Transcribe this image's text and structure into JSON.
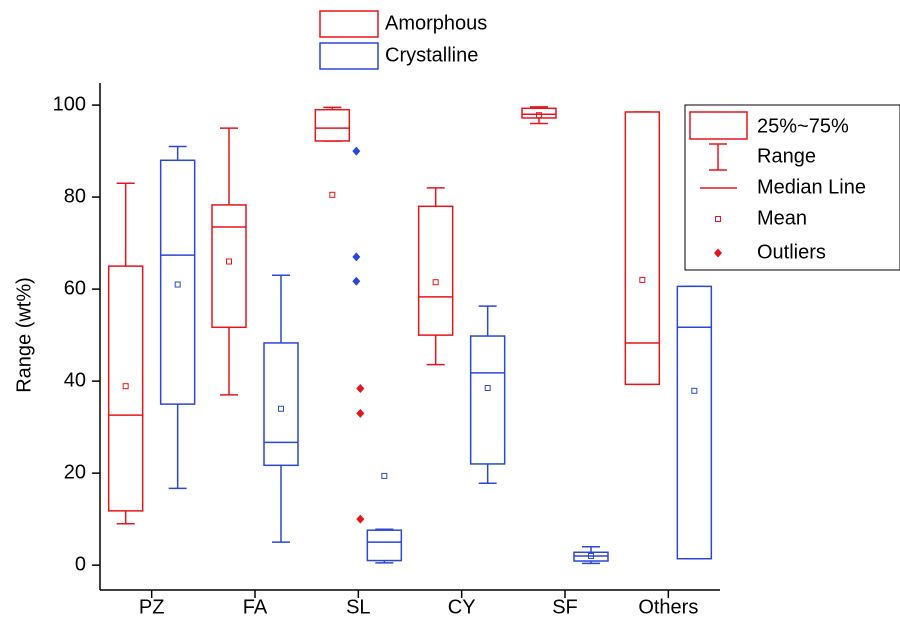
{
  "chart_data": {
    "type": "box",
    "y_label": "Range (wt%)",
    "categories": [
      "PZ",
      "FA",
      "SL",
      "CY",
      "SF",
      "Others"
    ],
    "ylim": [
      -5.4,
      104.8
    ],
    "yticks": [
      0,
      20,
      40,
      60,
      80,
      100
    ],
    "series": [
      {
        "name": "Amorphous",
        "color": "#e8141b",
        "min": [
          9,
          37,
          92.2,
          43.6,
          96,
          39.3
        ],
        "q1": [
          11.8,
          51.7,
          92.2,
          50,
          97.2,
          39.3
        ],
        "median": [
          32.6,
          73.5,
          95,
          58.3,
          98,
          48.3
        ],
        "q3": [
          65,
          78.3,
          99,
          78,
          99.3,
          98.5
        ],
        "max": [
          83,
          95,
          99.5,
          82,
          99.6,
          98.5
        ],
        "mean": [
          38.9,
          66,
          80.5,
          61.5,
          97.8,
          62
        ],
        "outliers": [
          [],
          [],
          [
            38.4,
            33,
            10
          ],
          [],
          [],
          []
        ]
      },
      {
        "name": "Crystalline",
        "color": "#2a47d6",
        "min": [
          16.7,
          5,
          0.5,
          17.8,
          0.4,
          1.4
        ],
        "q1": [
          35,
          21.7,
          1,
          22,
          0.9,
          1.4
        ],
        "median": [
          67.4,
          26.7,
          5,
          41.8,
          2,
          51.7
        ],
        "q3": [
          88,
          48.3,
          7.6,
          49.8,
          2.8,
          60.6
        ],
        "max": [
          91,
          63,
          7.8,
          56.3,
          4,
          60.6
        ],
        "mean": [
          61,
          34,
          19.4,
          38.5,
          2,
          37.9
        ],
        "outliers": [
          [],
          [],
          [
            90,
            67,
            61.7
          ],
          [],
          [],
          []
        ]
      }
    ],
    "legend_items": [
      "25%~75%",
      "Range",
      "Median Line",
      "Mean",
      "Outliers"
    ]
  }
}
